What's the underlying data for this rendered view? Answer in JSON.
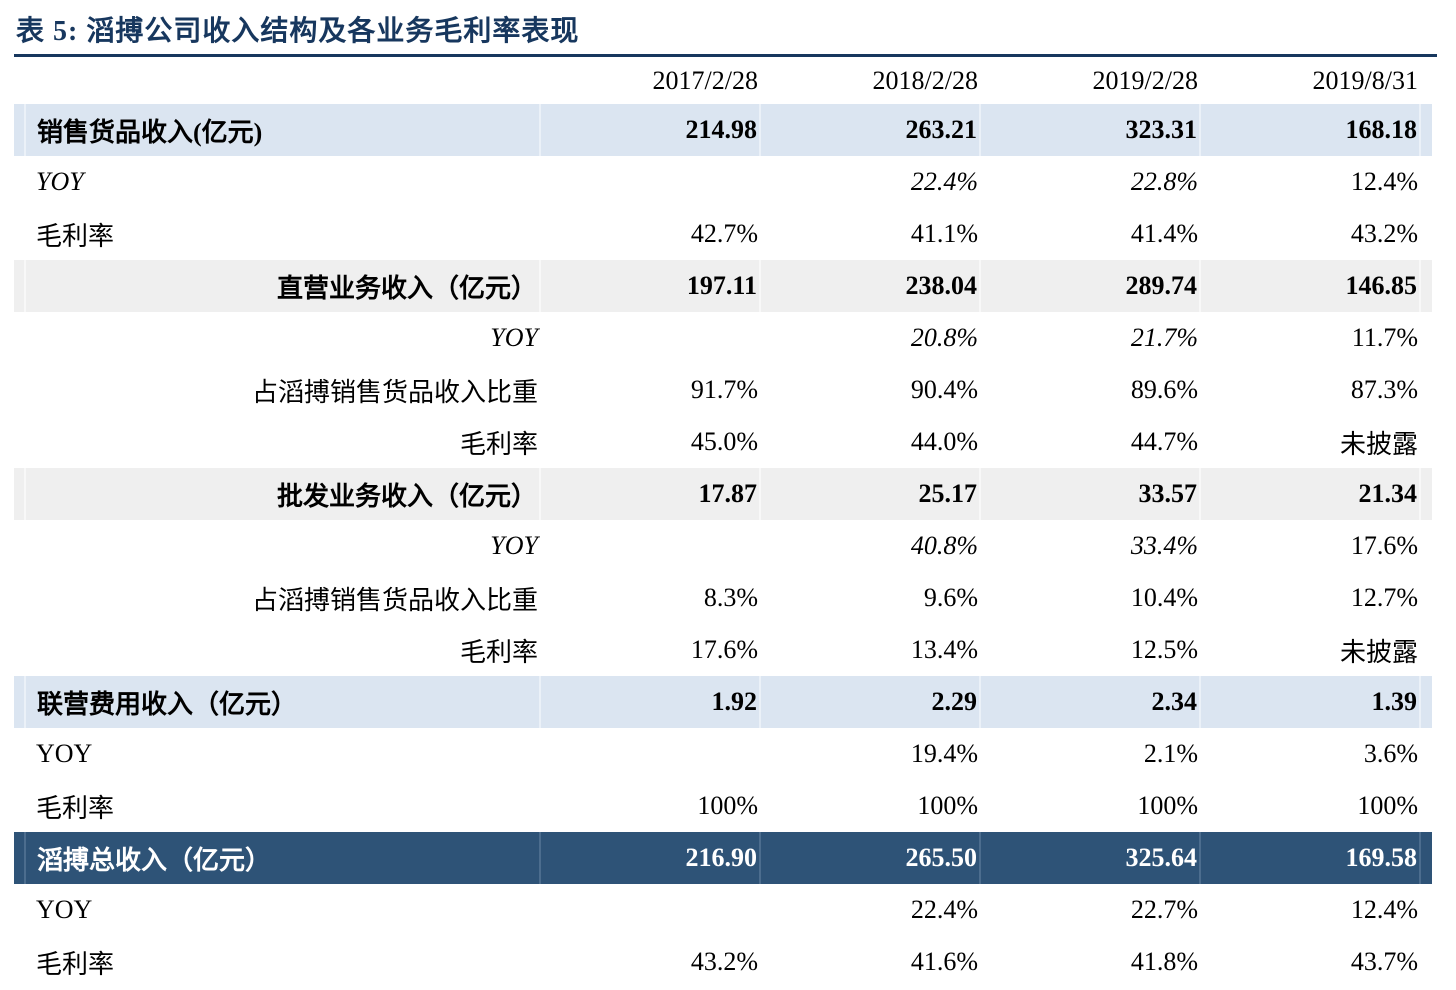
{
  "title": "表 5: 滔搏公司收入结构及各业务毛利率表现",
  "columns": [
    "2017/2/28",
    "2018/2/28",
    "2019/2/28",
    "2019/8/31"
  ],
  "rows": [
    {
      "label": "销售货品收入(亿元)",
      "values": [
        "214.98",
        "263.21",
        "323.31",
        "168.18"
      ]
    },
    {
      "label": "YOY",
      "values": [
        "",
        "22.4%",
        "22.8%",
        "12.4%"
      ]
    },
    {
      "label": "毛利率",
      "values": [
        "42.7%",
        "41.1%",
        "41.4%",
        "43.2%"
      ]
    },
    {
      "label": "直营业务收入（亿元）",
      "values": [
        "197.11",
        "238.04",
        "289.74",
        "146.85"
      ]
    },
    {
      "label": "YOY",
      "values": [
        "",
        "20.8%",
        "21.7%",
        "11.7%"
      ]
    },
    {
      "label": "占滔搏销售货品收入比重",
      "values": [
        "91.7%",
        "90.4%",
        "89.6%",
        "87.3%"
      ]
    },
    {
      "label": "毛利率",
      "values": [
        "45.0%",
        "44.0%",
        "44.7%",
        "未披露"
      ]
    },
    {
      "label": "批发业务收入（亿元）",
      "values": [
        "17.87",
        "25.17",
        "33.57",
        "21.34"
      ]
    },
    {
      "label": "YOY",
      "values": [
        "",
        "40.8%",
        "33.4%",
        "17.6%"
      ]
    },
    {
      "label": "占滔搏销售货品收入比重",
      "values": [
        "8.3%",
        "9.6%",
        "10.4%",
        "12.7%"
      ]
    },
    {
      "label": "毛利率",
      "values": [
        "17.6%",
        "13.4%",
        "12.5%",
        "未披露"
      ]
    },
    {
      "label": "联营费用收入（亿元）",
      "values": [
        "1.92",
        "2.29",
        "2.34",
        "1.39"
      ]
    },
    {
      "label": "YOY",
      "values": [
        "",
        "19.4%",
        "2.1%",
        "3.6%"
      ]
    },
    {
      "label": "毛利率",
      "values": [
        "100%",
        "100%",
        "100%",
        "100%"
      ]
    },
    {
      "label": "滔搏总收入（亿元）",
      "values": [
        "216.90",
        "265.50",
        "325.64",
        "169.58"
      ]
    },
    {
      "label": "YOY",
      "values": [
        "",
        "22.4%",
        "22.7%",
        "12.4%"
      ]
    },
    {
      "label": "毛利率",
      "values": [
        "43.2%",
        "41.6%",
        "41.8%",
        "43.7%"
      ]
    }
  ],
  "colors": {
    "accent": "#17375e",
    "row_blue": "#dbe5f1",
    "row_gray": "#efefef",
    "row_dark": "#2e5377",
    "sep_blue": "#ebf1f8",
    "sep_gray": "#f8f8f8",
    "sep_dark": "#4c6d8e"
  }
}
